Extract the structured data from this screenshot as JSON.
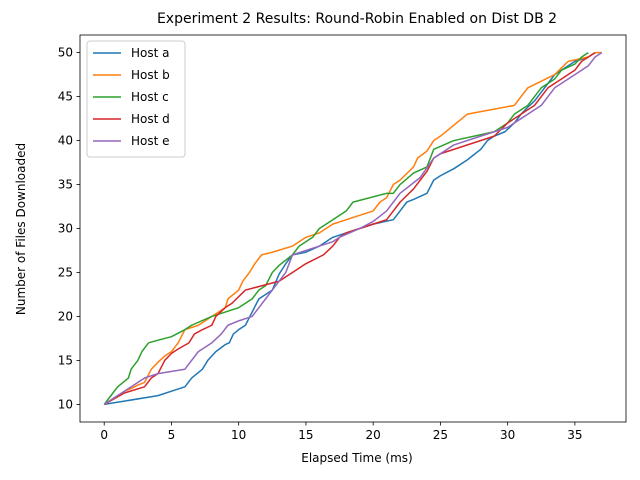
{
  "chart_data": {
    "type": "line",
    "title": "Experiment 2 Results: Round-Robin Enabled on Dist DB 2",
    "xlabel": "Elapsed Time (ms)",
    "ylabel": "Number of Files Downloaded",
    "xlim": [
      -1.8,
      38.8
    ],
    "ylim": [
      8,
      52
    ],
    "xticks": [
      0,
      5,
      10,
      15,
      20,
      25,
      30,
      35
    ],
    "yticks": [
      10,
      15,
      20,
      25,
      30,
      35,
      40,
      45,
      50
    ],
    "grid": false,
    "legend_position": "top-left",
    "series": [
      {
        "name": "Host a",
        "color": "#1f77b4",
        "points": [
          [
            0,
            10
          ],
          [
            4,
            11
          ],
          [
            5,
            11.5
          ],
          [
            6,
            12
          ],
          [
            6.5,
            13
          ],
          [
            7.3,
            14
          ],
          [
            7.7,
            15
          ],
          [
            8.3,
            16
          ],
          [
            9,
            16.8
          ],
          [
            9.3,
            17
          ],
          [
            9.6,
            18
          ],
          [
            10,
            18.5
          ],
          [
            10.5,
            19
          ],
          [
            11,
            20.5
          ],
          [
            11.5,
            22
          ],
          [
            12,
            22.5
          ],
          [
            12.5,
            23
          ],
          [
            13,
            24.8
          ],
          [
            13.5,
            26
          ],
          [
            14,
            27
          ],
          [
            15,
            27.3
          ],
          [
            16,
            28
          ],
          [
            17,
            29
          ],
          [
            19,
            30
          ],
          [
            20,
            30.5
          ],
          [
            21.5,
            31
          ],
          [
            22,
            32
          ],
          [
            22.5,
            33
          ],
          [
            23,
            33.3
          ],
          [
            24,
            34
          ],
          [
            24.5,
            35.5
          ],
          [
            25,
            36
          ],
          [
            26,
            36.8
          ],
          [
            27,
            37.8
          ],
          [
            28,
            39
          ],
          [
            28.5,
            40
          ],
          [
            29,
            40.5
          ],
          [
            29.8,
            41
          ],
          [
            30.5,
            42
          ],
          [
            31,
            43
          ],
          [
            31.5,
            43.8
          ],
          [
            32,
            44.5
          ],
          [
            32.5,
            45.5
          ],
          [
            33,
            46.5
          ],
          [
            33.5,
            47.5
          ],
          [
            34,
            48
          ],
          [
            35,
            49
          ],
          [
            36,
            49.5
          ],
          [
            36.5,
            50
          ]
        ]
      },
      {
        "name": "Host b",
        "color": "#ff7f0e",
        "points": [
          [
            0,
            10
          ],
          [
            1,
            11
          ],
          [
            1.5,
            11.5
          ],
          [
            2,
            11.8
          ],
          [
            2.5,
            12.2
          ],
          [
            3,
            12.5
          ],
          [
            3.5,
            14
          ],
          [
            4,
            14.8
          ],
          [
            4.5,
            15.5
          ],
          [
            5,
            16
          ],
          [
            5.5,
            17
          ],
          [
            6,
            18.5
          ],
          [
            7,
            19
          ],
          [
            8,
            20
          ],
          [
            9,
            21
          ],
          [
            9.2,
            22
          ],
          [
            10,
            23
          ],
          [
            10.3,
            24
          ],
          [
            10.8,
            25
          ],
          [
            11.2,
            26
          ],
          [
            11.7,
            27
          ],
          [
            12.5,
            27.3
          ],
          [
            14,
            28
          ],
          [
            15,
            29
          ],
          [
            16,
            29.5
          ],
          [
            17,
            30.5
          ],
          [
            18,
            31
          ],
          [
            20,
            32
          ],
          [
            20.5,
            33
          ],
          [
            21,
            33.5
          ],
          [
            21.5,
            35
          ],
          [
            22,
            35.5
          ],
          [
            23,
            37
          ],
          [
            23.3,
            38
          ],
          [
            24,
            38.8
          ],
          [
            24.5,
            40
          ],
          [
            25,
            40.5
          ],
          [
            27,
            43
          ],
          [
            30.5,
            44
          ],
          [
            31,
            45
          ],
          [
            31.5,
            46
          ],
          [
            33.5,
            47.5
          ],
          [
            34.5,
            49
          ],
          [
            36,
            49.5
          ],
          [
            36.5,
            50
          ],
          [
            37,
            50
          ]
        ]
      },
      {
        "name": "Host c",
        "color": "#2ca02c",
        "points": [
          [
            0,
            10
          ],
          [
            0.5,
            11
          ],
          [
            1,
            12
          ],
          [
            1.8,
            13
          ],
          [
            2,
            14
          ],
          [
            2.5,
            15
          ],
          [
            2.8,
            16
          ],
          [
            3.3,
            17
          ],
          [
            4,
            17.3
          ],
          [
            5,
            17.7
          ],
          [
            6,
            18.5
          ],
          [
            6.5,
            19
          ],
          [
            8,
            20
          ],
          [
            9,
            20.5
          ],
          [
            10,
            21
          ],
          [
            11,
            22
          ],
          [
            11.5,
            23
          ],
          [
            12,
            23.5
          ],
          [
            12.5,
            25
          ],
          [
            13,
            25.8
          ],
          [
            14,
            27
          ],
          [
            14.5,
            28
          ],
          [
            15.5,
            29
          ],
          [
            16,
            30
          ],
          [
            17,
            31
          ],
          [
            18,
            32
          ],
          [
            18.5,
            33
          ],
          [
            21,
            34
          ],
          [
            21.5,
            34
          ],
          [
            22,
            35
          ],
          [
            23,
            36.3
          ],
          [
            24,
            37
          ],
          [
            24.5,
            39
          ],
          [
            26,
            40
          ],
          [
            29,
            41
          ],
          [
            30,
            42
          ],
          [
            30.5,
            43
          ],
          [
            31.5,
            44
          ],
          [
            32,
            45
          ],
          [
            32.5,
            46
          ],
          [
            33.5,
            47
          ],
          [
            34,
            48
          ],
          [
            35,
            48.7
          ],
          [
            35.5,
            49.5
          ],
          [
            36,
            50
          ]
        ]
      },
      {
        "name": "Host d",
        "color": "#d62728",
        "points": [
          [
            0,
            10
          ],
          [
            1.5,
            11.3
          ],
          [
            3,
            12
          ],
          [
            3.5,
            13
          ],
          [
            4,
            13.5
          ],
          [
            4.5,
            15
          ],
          [
            5,
            15.8
          ],
          [
            5.5,
            16.3
          ],
          [
            6.3,
            17
          ],
          [
            6.7,
            18
          ],
          [
            7.3,
            18.5
          ],
          [
            8,
            19
          ],
          [
            8.3,
            20
          ],
          [
            9,
            21
          ],
          [
            9.5,
            21.5
          ],
          [
            10.5,
            23
          ],
          [
            13,
            24
          ],
          [
            14,
            25
          ],
          [
            15,
            26
          ],
          [
            16.3,
            27
          ],
          [
            17,
            28
          ],
          [
            17.5,
            29
          ],
          [
            18,
            29.5
          ],
          [
            19,
            30
          ],
          [
            20,
            30.5
          ],
          [
            21,
            31
          ],
          [
            22,
            33
          ],
          [
            23,
            34.5
          ],
          [
            23.5,
            35.5
          ],
          [
            24,
            36.5
          ],
          [
            24.5,
            38
          ],
          [
            25,
            38.5
          ],
          [
            29,
            40.5
          ],
          [
            30,
            42
          ],
          [
            31.5,
            43.5
          ],
          [
            32,
            44
          ],
          [
            32.5,
            45
          ],
          [
            33,
            46
          ],
          [
            34,
            47
          ],
          [
            35,
            48
          ],
          [
            35.5,
            49
          ],
          [
            36.5,
            50
          ]
        ]
      },
      {
        "name": "Host e",
        "color": "#9467bd",
        "points": [
          [
            0,
            10
          ],
          [
            1,
            11
          ],
          [
            2,
            12
          ],
          [
            3,
            13
          ],
          [
            4,
            13.5
          ],
          [
            6,
            14
          ],
          [
            7,
            16
          ],
          [
            8,
            17
          ],
          [
            8.7,
            18
          ],
          [
            9.2,
            19
          ],
          [
            10,
            19.5
          ],
          [
            11,
            20
          ],
          [
            11.5,
            21
          ],
          [
            12,
            22
          ],
          [
            12.5,
            23
          ],
          [
            13,
            24
          ],
          [
            13.5,
            25
          ],
          [
            14,
            27
          ],
          [
            15,
            27.5
          ],
          [
            16,
            28
          ],
          [
            17,
            28.5
          ],
          [
            17.5,
            29
          ],
          [
            19,
            30
          ],
          [
            20,
            30.8
          ],
          [
            21,
            32
          ],
          [
            21.5,
            33
          ],
          [
            22,
            34
          ],
          [
            23,
            35.2
          ],
          [
            23.5,
            35.8
          ],
          [
            24.5,
            38
          ],
          [
            26,
            39.5
          ],
          [
            28,
            40.5
          ],
          [
            29,
            41
          ],
          [
            30,
            41.5
          ],
          [
            31,
            42.5
          ],
          [
            32,
            43.5
          ],
          [
            32.5,
            44
          ],
          [
            33,
            45
          ],
          [
            33.5,
            46
          ],
          [
            34,
            46.5
          ],
          [
            35,
            47.5
          ],
          [
            36,
            48.5
          ],
          [
            36.5,
            49.5
          ],
          [
            37,
            50
          ]
        ]
      }
    ]
  }
}
